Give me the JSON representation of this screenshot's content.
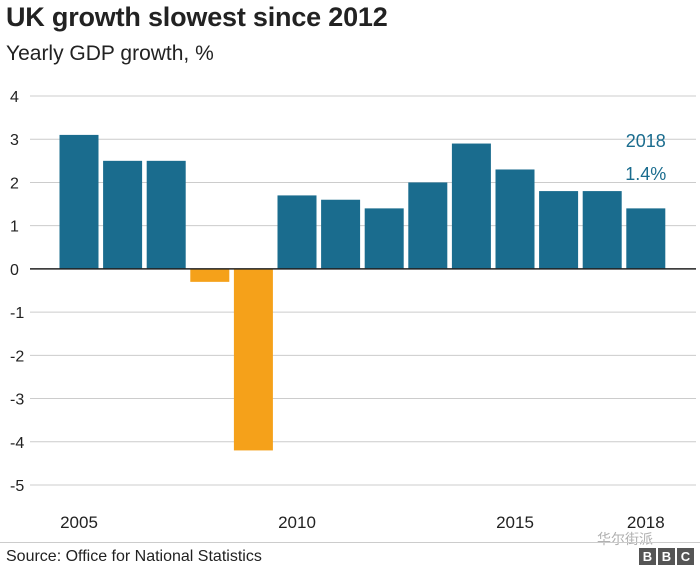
{
  "header": {
    "title": "UK growth slowest since 2012",
    "subtitle": "Yearly GDP growth, %"
  },
  "footer": {
    "source": "Source: Office for National Statistics",
    "watermark": "华尔街派",
    "logo_letters": [
      "B",
      "B",
      "C"
    ]
  },
  "colors": {
    "positive": "#1a6c8e",
    "negative": "#f5a11a",
    "annotation": "#1a6c8e",
    "grid": "#cccccc",
    "zero_line": "#222222"
  },
  "chart_data": {
    "type": "bar",
    "title": "UK growth slowest since 2012",
    "subtitle": "Yearly GDP growth, %",
    "xlabel": "",
    "ylabel": "Yearly GDP growth, %",
    "categories": [
      2005,
      2006,
      2007,
      2008,
      2009,
      2010,
      2011,
      2012,
      2013,
      2014,
      2015,
      2016,
      2017,
      2018
    ],
    "values": [
      3.1,
      2.5,
      2.5,
      -0.3,
      -4.2,
      1.7,
      1.6,
      1.4,
      2.0,
      2.9,
      2.3,
      1.8,
      1.8,
      1.4
    ],
    "ylim": [
      -5,
      4
    ],
    "yticks": [
      4,
      3,
      2,
      1,
      0,
      -1,
      -2,
      -3,
      -4,
      -5
    ],
    "ytick_labels": [
      "4",
      "3",
      "2",
      "1",
      "0",
      "-1",
      "-2",
      "-3",
      "-4",
      "-5"
    ],
    "xtick_labels": [
      {
        "year": 2005,
        "label": "2005"
      },
      {
        "year": 2010,
        "label": "2010"
      },
      {
        "year": 2015,
        "label": "2015"
      },
      {
        "year": 2018,
        "label": "2018"
      }
    ],
    "annotation": {
      "year": 2018,
      "line1": "2018",
      "line2": "1.4%"
    },
    "grid": true
  }
}
